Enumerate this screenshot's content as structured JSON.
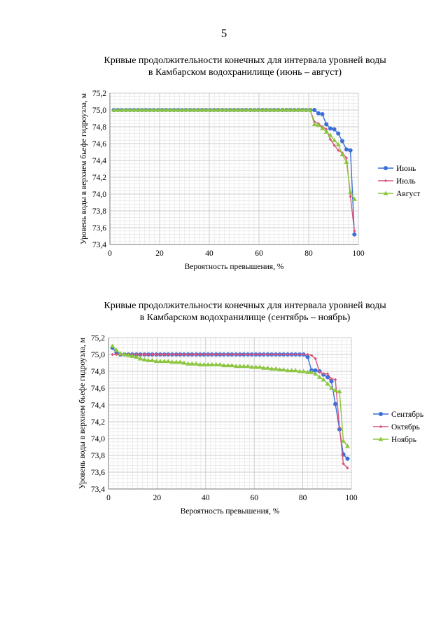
{
  "page_number": "5",
  "colors": {
    "june": "#3a6fd8",
    "july": "#d9557a",
    "august": "#8cc63f",
    "september": "#3a6fd8",
    "october": "#d9557a",
    "november": "#8cc63f",
    "grid": "#d0d0d0",
    "plot_bg": "#ffffff"
  },
  "chart_data": [
    {
      "type": "line",
      "title_lines": [
        "Кривые продолжительности конечных для интервала уровней воды",
        "в Камбарском водохранилище (июнь – август)"
      ],
      "xlabel": "Вероятность превышения, %",
      "ylabel": "Уровень воды в верхнем бьефе гидроузла, м",
      "xlim": [
        0,
        100
      ],
      "ylim": [
        73.4,
        75.2
      ],
      "x_ticks": [
        "0",
        "20",
        "40",
        "60",
        "80",
        "100"
      ],
      "y_ticks": [
        "73,4",
        "73,6",
        "73,8",
        "74,0",
        "74,2",
        "74,4",
        "74,6",
        "74,8",
        "75,0",
        "75,2"
      ],
      "grid": true,
      "legend_position": "right",
      "series": [
        {
          "name": "Июнь",
          "marker": "circle",
          "x": [
            1.6,
            3.2,
            4.8,
            6.5,
            8.1,
            9.7,
            11.3,
            12.9,
            14.5,
            16.1,
            17.7,
            19.4,
            21,
            22.6,
            24.2,
            25.8,
            27.4,
            29,
            30.6,
            32.3,
            33.9,
            35.5,
            37.1,
            38.7,
            40.3,
            41.9,
            43.5,
            45.2,
            46.8,
            48.4,
            50,
            51.6,
            53.2,
            54.8,
            56.5,
            58.1,
            59.7,
            61.3,
            62.9,
            64.5,
            66.1,
            67.7,
            69.4,
            71,
            72.6,
            74.2,
            75.8,
            77.4,
            79,
            80.6,
            82.3,
            83.9,
            85.5,
            87.1,
            88.7,
            90.3,
            91.9,
            93.5,
            95.2,
            96.8,
            98.4
          ],
          "y": [
            75,
            75,
            75,
            75,
            75,
            75,
            75,
            75,
            75,
            75,
            75,
            75,
            75,
            75,
            75,
            75,
            75,
            75,
            75,
            75,
            75,
            75,
            75,
            75,
            75,
            75,
            75,
            75,
            75,
            75,
            75,
            75,
            75,
            75,
            75,
            75,
            75,
            75,
            75,
            75,
            75,
            75,
            75,
            75,
            75,
            75,
            75,
            75,
            75,
            75,
            75,
            74.96,
            74.95,
            74.83,
            74.78,
            74.77,
            74.72,
            74.63,
            74.53,
            74.52,
            73.52
          ]
        },
        {
          "name": "Июль",
          "marker": "diamond",
          "x": [
            1.6,
            3.2,
            4.8,
            6.5,
            8.1,
            9.7,
            11.3,
            12.9,
            14.5,
            16.1,
            17.7,
            19.4,
            21,
            22.6,
            24.2,
            25.8,
            27.4,
            29,
            30.6,
            32.3,
            33.9,
            35.5,
            37.1,
            38.7,
            40.3,
            41.9,
            43.5,
            45.2,
            46.8,
            48.4,
            50,
            51.6,
            53.2,
            54.8,
            56.5,
            58.1,
            59.7,
            61.3,
            62.9,
            64.5,
            66.1,
            67.7,
            69.4,
            71,
            72.6,
            74.2,
            75.8,
            77.4,
            79,
            80.6,
            82.3,
            83.9,
            85.5,
            87.1,
            88.7,
            90.3,
            91.9,
            93.5,
            95.2,
            96.8,
            98.4
          ],
          "y": [
            75,
            75,
            75,
            75,
            75,
            75,
            75,
            75,
            75,
            75,
            75,
            75,
            75,
            75,
            75,
            75,
            75,
            75,
            75,
            75,
            75,
            75,
            75,
            75,
            75,
            75,
            75,
            75,
            75,
            75,
            75,
            75,
            75,
            75,
            75,
            75,
            75,
            75,
            75,
            75,
            75,
            75,
            75,
            75,
            75,
            75,
            75,
            75,
            75,
            75,
            74.86,
            74.84,
            74.8,
            74.77,
            74.65,
            74.58,
            74.52,
            74.49,
            74.43,
            73.97,
            73.56
          ]
        },
        {
          "name": "Август",
          "marker": "triangle",
          "x": [
            1.6,
            3.2,
            4.8,
            6.5,
            8.1,
            9.7,
            11.3,
            12.9,
            14.5,
            16.1,
            17.7,
            19.4,
            21,
            22.6,
            24.2,
            25.8,
            27.4,
            29,
            30.6,
            32.3,
            33.9,
            35.5,
            37.1,
            38.7,
            40.3,
            41.9,
            43.5,
            45.2,
            46.8,
            48.4,
            50,
            51.6,
            53.2,
            54.8,
            56.5,
            58.1,
            59.7,
            61.3,
            62.9,
            64.5,
            66.1,
            67.7,
            69.4,
            71,
            72.6,
            74.2,
            75.8,
            77.4,
            79,
            80.6,
            82.3,
            83.9,
            85.5,
            87.1,
            88.7,
            90.3,
            91.9,
            93.5,
            95.2,
            96.8,
            98.4
          ],
          "y": [
            75,
            75,
            75,
            75,
            75,
            75,
            75,
            75,
            75,
            75,
            75,
            75,
            75,
            75,
            75,
            75,
            75,
            75,
            75,
            75,
            75,
            75,
            75,
            75,
            75,
            75,
            75,
            75,
            75,
            75,
            75,
            75,
            75,
            75,
            75,
            75,
            75,
            75,
            75,
            75,
            75,
            75,
            75,
            75,
            75,
            75,
            75,
            75,
            75,
            75,
            74.83,
            74.82,
            74.78,
            74.74,
            74.7,
            74.64,
            74.59,
            74.47,
            74.38,
            74.02,
            73.94
          ]
        }
      ]
    },
    {
      "type": "line",
      "title_lines": [
        "Кривые продолжительности конечных для интервала уровней воды",
        "в Камбарском водохранилище (сентябрь – ноябрь)"
      ],
      "xlabel": "Вероятность превышения, %",
      "ylabel": "Уровень воды в верхнем бьефе гидроузла, м",
      "xlim": [
        0,
        100
      ],
      "ylim": [
        73.4,
        75.2
      ],
      "x_ticks": [
        "0",
        "20",
        "40",
        "60",
        "80",
        "100"
      ],
      "y_ticks": [
        "73,4",
        "73,6",
        "73,8",
        "74,0",
        "74,2",
        "74,4",
        "74,6",
        "74,8",
        "75,0",
        "75,2"
      ],
      "grid": true,
      "legend_position": "right",
      "series": [
        {
          "name": "Сентябрь",
          "marker": "circle",
          "x": [
            1.6,
            3.3,
            4.9,
            6.6,
            8.2,
            9.8,
            11.5,
            13.1,
            14.8,
            16.4,
            18,
            19.7,
            21.3,
            23,
            24.6,
            26.2,
            27.9,
            29.5,
            31.1,
            32.8,
            34.4,
            36.1,
            37.7,
            39.3,
            41,
            42.6,
            44.3,
            45.9,
            47.5,
            49.2,
            50.8,
            52.5,
            54.1,
            55.7,
            57.4,
            59,
            60.7,
            62.3,
            63.9,
            65.6,
            67.2,
            68.9,
            70.5,
            72.1,
            73.8,
            75.4,
            77,
            78.7,
            80.3,
            82,
            83.6,
            85.2,
            86.9,
            88.5,
            90.2,
            91.8,
            93.4,
            95.1,
            96.7,
            98.4
          ],
          "y": [
            75.08,
            75.02,
            75,
            75,
            75,
            75,
            75,
            75,
            75,
            75,
            75,
            75,
            75,
            75,
            75,
            75,
            75,
            75,
            75,
            75,
            75,
            75,
            75,
            75,
            75,
            75,
            75,
            75,
            75,
            75,
            75,
            75,
            75,
            75,
            75,
            75,
            75,
            75,
            75,
            75,
            75,
            75,
            75,
            75,
            75,
            75,
            75,
            75,
            75,
            74.97,
            74.81,
            74.81,
            74.8,
            74.76,
            74.73,
            74.68,
            74.41,
            74.11,
            73.81,
            73.76
          ]
        },
        {
          "name": "Октябрь",
          "marker": "diamond",
          "x": [
            1.6,
            3.3,
            4.9,
            6.6,
            8.2,
            9.8,
            11.5,
            13.1,
            14.8,
            16.4,
            18,
            19.7,
            21.3,
            23,
            24.6,
            26.2,
            27.9,
            29.5,
            31.1,
            32.8,
            34.4,
            36.1,
            37.7,
            39.3,
            41,
            42.6,
            44.3,
            45.9,
            47.5,
            49.2,
            50.8,
            52.5,
            54.1,
            55.7,
            57.4,
            59,
            60.7,
            62.3,
            63.9,
            65.6,
            67.2,
            68.9,
            70.5,
            72.1,
            73.8,
            75.4,
            77,
            78.7,
            80.3,
            82,
            83.6,
            85.2,
            86.9,
            88.5,
            90.2,
            91.8,
            93.4,
            95.1,
            96.7,
            98.4
          ],
          "y": [
            75,
            75,
            75,
            75,
            75,
            75,
            75,
            75,
            75,
            75,
            75,
            75,
            75,
            75,
            75,
            75,
            75,
            75,
            75,
            75,
            75,
            75,
            75,
            75,
            75,
            75,
            75,
            75,
            75,
            75,
            75,
            75,
            75,
            75,
            75,
            75,
            75,
            75,
            75,
            75,
            75,
            75,
            75,
            75,
            75,
            75,
            75,
            75,
            75,
            75,
            74.99,
            74.95,
            74.79,
            74.77,
            74.77,
            74.71,
            74.7,
            74.13,
            73.7,
            73.65
          ]
        },
        {
          "name": "Ноябрь",
          "marker": "triangle",
          "x": [
            1.6,
            3.3,
            4.9,
            6.6,
            8.2,
            9.8,
            11.5,
            13.1,
            14.8,
            16.4,
            18,
            19.7,
            21.3,
            23,
            24.6,
            26.2,
            27.9,
            29.5,
            31.1,
            32.8,
            34.4,
            36.1,
            37.7,
            39.3,
            41,
            42.6,
            44.3,
            45.9,
            47.5,
            49.2,
            50.8,
            52.5,
            54.1,
            55.7,
            57.4,
            59,
            60.7,
            62.3,
            63.9,
            65.6,
            67.2,
            68.9,
            70.5,
            72.1,
            73.8,
            75.4,
            77,
            78.7,
            80.3,
            82,
            83.6,
            85.2,
            86.9,
            88.5,
            90.2,
            91.8,
            93.4,
            95.1,
            96.7,
            98.4
          ],
          "y": [
            75.1,
            75.05,
            75.01,
            75,
            74.99,
            74.98,
            74.97,
            74.95,
            74.94,
            74.93,
            74.93,
            74.92,
            74.92,
            74.92,
            74.92,
            74.91,
            74.91,
            74.91,
            74.9,
            74.89,
            74.89,
            74.89,
            74.88,
            74.88,
            74.88,
            74.88,
            74.88,
            74.88,
            74.87,
            74.87,
            74.87,
            74.86,
            74.86,
            74.86,
            74.86,
            74.85,
            74.85,
            74.85,
            74.84,
            74.84,
            74.83,
            74.83,
            74.82,
            74.82,
            74.81,
            74.81,
            74.81,
            74.8,
            74.8,
            74.79,
            74.79,
            74.77,
            74.73,
            74.7,
            74.65,
            74.6,
            74.57,
            74.56,
            73.97,
            73.91
          ]
        }
      ]
    }
  ]
}
